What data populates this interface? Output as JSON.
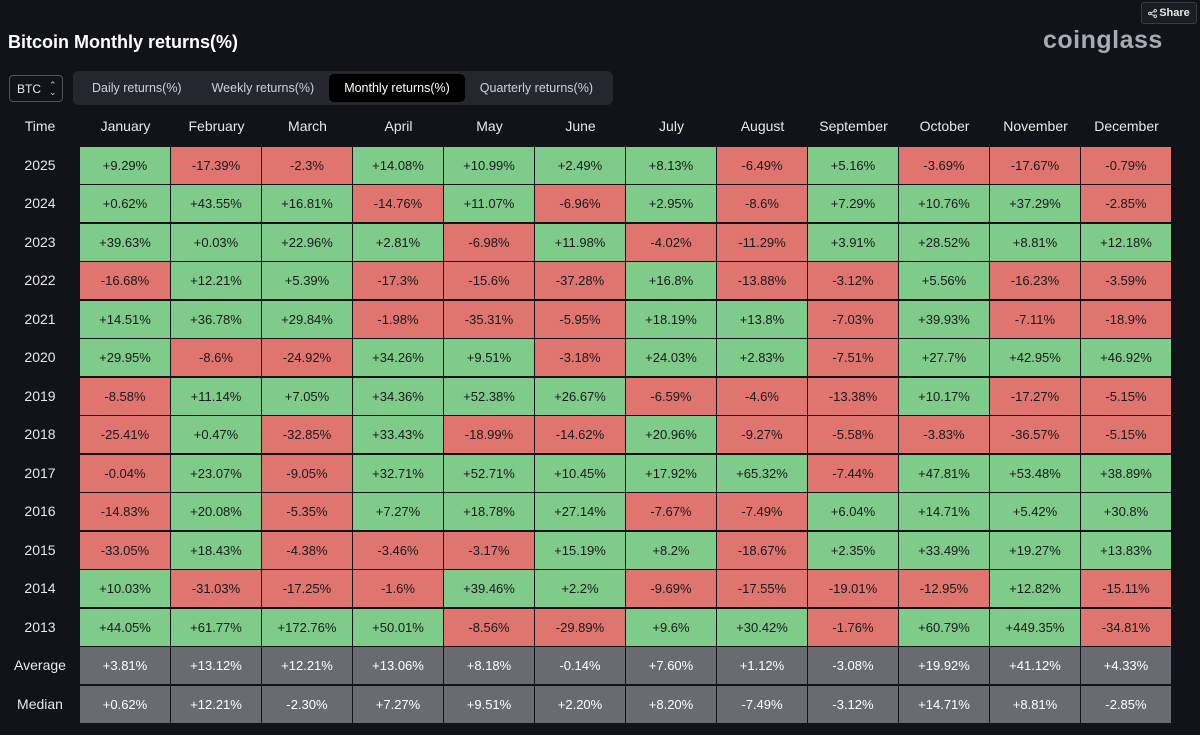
{
  "share": {
    "label": "Share",
    "icon": "share-icon"
  },
  "title": "Bitcoin Monthly returns(%)",
  "brand": "coinglass",
  "asset_select": {
    "value": "BTC"
  },
  "tabs": [
    {
      "label": "Daily returns(%)",
      "active": false
    },
    {
      "label": "Weekly returns(%)",
      "active": false
    },
    {
      "label": "Monthly returns(%)",
      "active": true
    },
    {
      "label": "Quarterly returns(%)",
      "active": false
    }
  ],
  "colors": {
    "positive": "#7fcb8a",
    "negative": "#e0756f",
    "stat": "#6a6b70"
  },
  "table": {
    "corner": "Time",
    "months": [
      "January",
      "February",
      "March",
      "April",
      "May",
      "June",
      "July",
      "August",
      "September",
      "October",
      "November",
      "December"
    ],
    "rows": [
      {
        "label": "2025",
        "values": [
          "+9.29%",
          "-17.39%",
          "-2.3%",
          "+14.08%",
          "+10.99%",
          "+2.49%",
          "+8.13%",
          "-6.49%",
          "+5.16%",
          "-3.69%",
          "-17.67%",
          "-0.79%"
        ]
      },
      {
        "label": "2024",
        "values": [
          "+0.62%",
          "+43.55%",
          "+16.81%",
          "-14.76%",
          "+11.07%",
          "-6.96%",
          "+2.95%",
          "-8.6%",
          "+7.29%",
          "+10.76%",
          "+37.29%",
          "-2.85%"
        ]
      },
      {
        "label": "2023",
        "values": [
          "+39.63%",
          "+0.03%",
          "+22.96%",
          "+2.81%",
          "-6.98%",
          "+11.98%",
          "-4.02%",
          "-11.29%",
          "+3.91%",
          "+28.52%",
          "+8.81%",
          "+12.18%"
        ]
      },
      {
        "label": "2022",
        "values": [
          "-16.68%",
          "+12.21%",
          "+5.39%",
          "-17.3%",
          "-15.6%",
          "-37.28%",
          "+16.8%",
          "-13.88%",
          "-3.12%",
          "+5.56%",
          "-16.23%",
          "-3.59%"
        ]
      },
      {
        "label": "2021",
        "values": [
          "+14.51%",
          "+36.78%",
          "+29.84%",
          "-1.98%",
          "-35.31%",
          "-5.95%",
          "+18.19%",
          "+13.8%",
          "-7.03%",
          "+39.93%",
          "-7.11%",
          "-18.9%"
        ]
      },
      {
        "label": "2020",
        "values": [
          "+29.95%",
          "-8.6%",
          "-24.92%",
          "+34.26%",
          "+9.51%",
          "-3.18%",
          "+24.03%",
          "+2.83%",
          "-7.51%",
          "+27.7%",
          "+42.95%",
          "+46.92%"
        ]
      },
      {
        "label": "2019",
        "values": [
          "-8.58%",
          "+11.14%",
          "+7.05%",
          "+34.36%",
          "+52.38%",
          "+26.67%",
          "-6.59%",
          "-4.6%",
          "-13.38%",
          "+10.17%",
          "-17.27%",
          "-5.15%"
        ]
      },
      {
        "label": "2018",
        "values": [
          "-25.41%",
          "+0.47%",
          "-32.85%",
          "+33.43%",
          "-18.99%",
          "-14.62%",
          "+20.96%",
          "-9.27%",
          "-5.58%",
          "-3.83%",
          "-36.57%",
          "-5.15%"
        ]
      },
      {
        "label": "2017",
        "values": [
          "-0.04%",
          "+23.07%",
          "-9.05%",
          "+32.71%",
          "+52.71%",
          "+10.45%",
          "+17.92%",
          "+65.32%",
          "-7.44%",
          "+47.81%",
          "+53.48%",
          "+38.89%"
        ]
      },
      {
        "label": "2016",
        "values": [
          "-14.83%",
          "+20.08%",
          "-5.35%",
          "+7.27%",
          "+18.78%",
          "+27.14%",
          "-7.67%",
          "-7.49%",
          "+6.04%",
          "+14.71%",
          "+5.42%",
          "+30.8%"
        ]
      },
      {
        "label": "2015",
        "values": [
          "-33.05%",
          "+18.43%",
          "-4.38%",
          "-3.46%",
          "-3.17%",
          "+15.19%",
          "+8.2%",
          "-18.67%",
          "+2.35%",
          "+33.49%",
          "+19.27%",
          "+13.83%"
        ]
      },
      {
        "label": "2014",
        "values": [
          "+10.03%",
          "-31.03%",
          "-17.25%",
          "-1.6%",
          "+39.46%",
          "+2.2%",
          "-9.69%",
          "-17.55%",
          "-19.01%",
          "-12.95%",
          "+12.82%",
          "-15.11%"
        ]
      },
      {
        "label": "2013",
        "values": [
          "+44.05%",
          "+61.77%",
          "+172.76%",
          "+50.01%",
          "-8.56%",
          "-29.89%",
          "+9.6%",
          "+30.42%",
          "-1.76%",
          "+60.79%",
          "+449.35%",
          "-34.81%"
        ]
      }
    ],
    "stats": [
      {
        "label": "Average",
        "values": [
          "+3.81%",
          "+13.12%",
          "+12.21%",
          "+13.06%",
          "+8.18%",
          "-0.14%",
          "+7.60%",
          "+1.12%",
          "-3.08%",
          "+19.92%",
          "+41.12%",
          "+4.33%"
        ]
      },
      {
        "label": "Median",
        "values": [
          "+0.62%",
          "+12.21%",
          "-2.30%",
          "+7.27%",
          "+9.51%",
          "+2.20%",
          "+8.20%",
          "-7.49%",
          "-3.12%",
          "+14.71%",
          "+8.81%",
          "-2.85%"
        ]
      }
    ]
  }
}
